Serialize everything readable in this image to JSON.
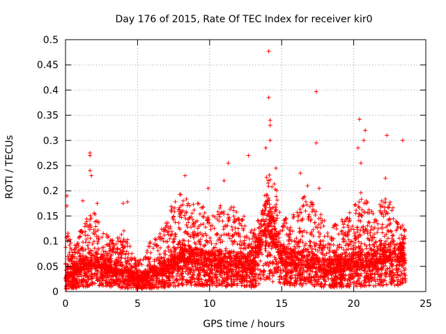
{
  "chart_data": {
    "type": "scatter",
    "title": "Day 176 of 2015, Rate Of TEC Index for receiver kir0",
    "xlabel": "GPS time / hours",
    "ylabel": "ROTI / TECUs",
    "xlim": [
      0,
      25
    ],
    "ylim": [
      0,
      0.5
    ],
    "xticks": [
      0,
      5,
      10,
      15,
      20,
      25
    ],
    "yticks": [
      0,
      0.05,
      0.1,
      0.15,
      0.2,
      0.25,
      0.3,
      0.35,
      0.4,
      0.45,
      0.5
    ],
    "xtick_labels": [
      "0",
      "5",
      "10",
      "15",
      "20",
      "25"
    ],
    "ytick_labels": [
      "0",
      "0.05",
      "0.1",
      "0.15",
      "0.2",
      "0.25",
      "0.3",
      "0.35",
      "0.4",
      "0.45",
      "0.5"
    ],
    "grid": true,
    "marker": "+",
    "marker_color": "#ff0000",
    "series": [
      {
        "name": "ROTI",
        "notable_points": [
          {
            "x": 0.1,
            "y": 0.19
          },
          {
            "x": 0.1,
            "y": 0.17
          },
          {
            "x": 1.2,
            "y": 0.18
          },
          {
            "x": 1.7,
            "y": 0.275
          },
          {
            "x": 1.7,
            "y": 0.27
          },
          {
            "x": 1.7,
            "y": 0.24
          },
          {
            "x": 1.8,
            "y": 0.23
          },
          {
            "x": 2.2,
            "y": 0.175
          },
          {
            "x": 4.0,
            "y": 0.175
          },
          {
            "x": 4.3,
            "y": 0.178
          },
          {
            "x": 8.3,
            "y": 0.23
          },
          {
            "x": 9.9,
            "y": 0.205
          },
          {
            "x": 11.0,
            "y": 0.22
          },
          {
            "x": 11.3,
            "y": 0.255
          },
          {
            "x": 12.7,
            "y": 0.27
          },
          {
            "x": 13.9,
            "y": 0.285
          },
          {
            "x": 14.1,
            "y": 0.477
          },
          {
            "x": 14.1,
            "y": 0.385
          },
          {
            "x": 14.2,
            "y": 0.34
          },
          {
            "x": 14.2,
            "y": 0.33
          },
          {
            "x": 14.2,
            "y": 0.3
          },
          {
            "x": 14.6,
            "y": 0.245
          },
          {
            "x": 16.3,
            "y": 0.235
          },
          {
            "x": 16.8,
            "y": 0.21
          },
          {
            "x": 17.4,
            "y": 0.397
          },
          {
            "x": 17.4,
            "y": 0.295
          },
          {
            "x": 17.6,
            "y": 0.205
          },
          {
            "x": 20.4,
            "y": 0.342
          },
          {
            "x": 20.3,
            "y": 0.285
          },
          {
            "x": 20.8,
            "y": 0.32
          },
          {
            "x": 20.7,
            "y": 0.3
          },
          {
            "x": 20.5,
            "y": 0.255
          },
          {
            "x": 22.3,
            "y": 0.31
          },
          {
            "x": 22.2,
            "y": 0.225
          },
          {
            "x": 23.4,
            "y": 0.3
          }
        ],
        "envelope": [
          {
            "x": 0.0,
            "y": 0.1
          },
          {
            "x": 0.2,
            "y": 0.13
          },
          {
            "x": 0.5,
            "y": 0.08
          },
          {
            "x": 1.0,
            "y": 0.12
          },
          {
            "x": 1.5,
            "y": 0.15
          },
          {
            "x": 2.0,
            "y": 0.16
          },
          {
            "x": 2.5,
            "y": 0.12
          },
          {
            "x": 3.0,
            "y": 0.11
          },
          {
            "x": 3.5,
            "y": 0.1
          },
          {
            "x": 4.0,
            "y": 0.13
          },
          {
            "x": 4.5,
            "y": 0.09
          },
          {
            "x": 5.0,
            "y": 0.06
          },
          {
            "x": 5.5,
            "y": 0.07
          },
          {
            "x": 6.0,
            "y": 0.11
          },
          {
            "x": 6.5,
            "y": 0.12
          },
          {
            "x": 7.0,
            "y": 0.15
          },
          {
            "x": 7.5,
            "y": 0.18
          },
          {
            "x": 8.0,
            "y": 0.2
          },
          {
            "x": 8.5,
            "y": 0.19
          },
          {
            "x": 9.0,
            "y": 0.18
          },
          {
            "x": 9.5,
            "y": 0.17
          },
          {
            "x": 10.0,
            "y": 0.16
          },
          {
            "x": 10.5,
            "y": 0.17
          },
          {
            "x": 11.0,
            "y": 0.18
          },
          {
            "x": 11.5,
            "y": 0.19
          },
          {
            "x": 12.0,
            "y": 0.17
          },
          {
            "x": 12.5,
            "y": 0.15
          },
          {
            "x": 13.0,
            "y": 0.12
          },
          {
            "x": 13.5,
            "y": 0.16
          },
          {
            "x": 14.0,
            "y": 0.24
          },
          {
            "x": 14.5,
            "y": 0.22
          },
          {
            "x": 15.0,
            "y": 0.17
          },
          {
            "x": 15.5,
            "y": 0.14
          },
          {
            "x": 16.0,
            "y": 0.16
          },
          {
            "x": 16.5,
            "y": 0.19
          },
          {
            "x": 17.0,
            "y": 0.18
          },
          {
            "x": 17.5,
            "y": 0.17
          },
          {
            "x": 18.0,
            "y": 0.14
          },
          {
            "x": 18.5,
            "y": 0.13
          },
          {
            "x": 19.0,
            "y": 0.14
          },
          {
            "x": 19.5,
            "y": 0.15
          },
          {
            "x": 20.0,
            "y": 0.17
          },
          {
            "x": 20.5,
            "y": 0.2
          },
          {
            "x": 21.0,
            "y": 0.18
          },
          {
            "x": 21.5,
            "y": 0.15
          },
          {
            "x": 22.0,
            "y": 0.19
          },
          {
            "x": 22.5,
            "y": 0.19
          },
          {
            "x": 23.0,
            "y": 0.15
          },
          {
            "x": 23.5,
            "y": 0.13
          }
        ],
        "baseline": [
          {
            "x": 0.0,
            "y": 0.025
          },
          {
            "x": 1.0,
            "y": 0.04
          },
          {
            "x": 2.0,
            "y": 0.05
          },
          {
            "x": 3.0,
            "y": 0.04
          },
          {
            "x": 4.0,
            "y": 0.035
          },
          {
            "x": 5.0,
            "y": 0.02
          },
          {
            "x": 6.0,
            "y": 0.03
          },
          {
            "x": 7.0,
            "y": 0.04
          },
          {
            "x": 8.0,
            "y": 0.06
          },
          {
            "x": 9.0,
            "y": 0.055
          },
          {
            "x": 10.0,
            "y": 0.05
          },
          {
            "x": 11.0,
            "y": 0.05
          },
          {
            "x": 12.0,
            "y": 0.05
          },
          {
            "x": 13.0,
            "y": 0.04
          },
          {
            "x": 14.0,
            "y": 0.12
          },
          {
            "x": 15.0,
            "y": 0.06
          },
          {
            "x": 16.0,
            "y": 0.05
          },
          {
            "x": 17.0,
            "y": 0.05
          },
          {
            "x": 18.0,
            "y": 0.04
          },
          {
            "x": 19.0,
            "y": 0.04
          },
          {
            "x": 20.0,
            "y": 0.05
          },
          {
            "x": 21.0,
            "y": 0.05
          },
          {
            "x": 22.0,
            "y": 0.06
          },
          {
            "x": 23.0,
            "y": 0.06
          },
          {
            "x": 23.6,
            "y": 0.06
          }
        ],
        "x_range": [
          0,
          23.6
        ]
      }
    ]
  }
}
